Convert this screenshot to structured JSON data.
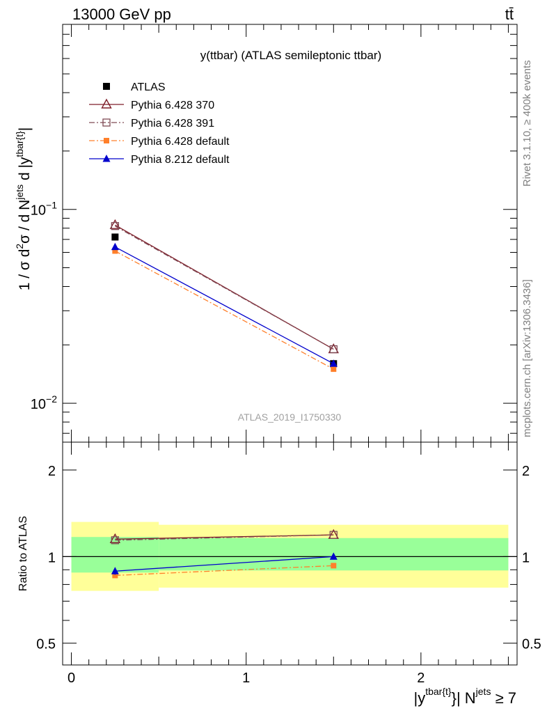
{
  "header": {
    "energy": "13000 GeV pp",
    "process": "tt̄"
  },
  "side": {
    "rivet": "Rivet 3.1.10, ≥ 400k events",
    "mcplots": "mcplots.cern.ch [arXiv:1306.3436]"
  },
  "watermark": "ATLAS_2019_I1750330",
  "colors": {
    "atlas": "#000000",
    "p370": "#7f1f2a",
    "p391": "#7f4a55",
    "p6def": "#ff7f2a",
    "p8def": "#0000cc",
    "band_outer": "#ffff99",
    "band_inner": "#99ff99"
  },
  "chart_data": [
    {
      "type": "line",
      "panel": "main",
      "title": "y(ttbar) (ATLAS semileptonic ttbar)",
      "ylabel_parts": [
        "1 / σ d",
        "2",
        "σ / d N",
        "jets",
        " d |y",
        "tbar{t}",
        "|"
      ],
      "yscale": "log",
      "ylim": [
        0.0063,
        0.9
      ],
      "xlim": [
        -0.05,
        2.55
      ],
      "ytick_labels": [
        {
          "value": 0.1,
          "base": "10",
          "exp": "−1"
        },
        {
          "value": 0.01,
          "base": "10",
          "exp": "−2"
        }
      ],
      "x": [
        0.25,
        1.5
      ],
      "series": [
        {
          "name": "ATLAS",
          "values": [
            0.072,
            0.016
          ],
          "marker": "square",
          "line": "none",
          "color_key": "atlas"
        },
        {
          "name": "Pythia 6.428 370",
          "values": [
            0.083,
            0.019
          ],
          "marker": "triangle-open",
          "line": "solid",
          "color_key": "p370"
        },
        {
          "name": "Pythia 6.428 391",
          "values": [
            0.082,
            0.019
          ],
          "marker": "square-open",
          "line": "dashdot",
          "color_key": "p391"
        },
        {
          "name": "Pythia 6.428 default",
          "values": [
            0.061,
            0.015
          ],
          "marker": "square-small",
          "line": "dashdot",
          "color_key": "p6def"
        },
        {
          "name": "Pythia 8.212 default",
          "values": [
            0.064,
            0.016
          ],
          "marker": "triangle",
          "line": "solid",
          "color_key": "p8def"
        }
      ]
    },
    {
      "type": "line",
      "panel": "ratio",
      "ylabel": "Ratio to ATLAS",
      "yscale": "log",
      "ylim": [
        0.42,
        2.5
      ],
      "xlim": [
        -0.05,
        2.55
      ],
      "ytick_labels": [
        {
          "value": 0.5,
          "label": "0.5"
        },
        {
          "value": 1,
          "label": "1"
        },
        {
          "value": 2,
          "label": "2"
        }
      ],
      "xtick_labels": [
        {
          "value": 0,
          "label": "0"
        },
        {
          "value": 1,
          "label": "1"
        },
        {
          "value": 2,
          "label": "2"
        }
      ],
      "xlabel_parts": [
        "|y",
        "tbar{t}",
        "}| N",
        "jets",
        " ≥ 7"
      ],
      "bands": [
        {
          "x0": 0.0,
          "x1": 0.5,
          "outer": [
            0.76,
            1.32
          ],
          "inner": [
            0.88,
            1.17
          ]
        },
        {
          "x0": 0.5,
          "x1": 2.5,
          "outer": [
            0.78,
            1.29
          ],
          "inner": [
            0.895,
            1.16
          ]
        }
      ],
      "x": [
        0.25,
        1.5
      ],
      "series": [
        {
          "name": "Pythia 6.428 370",
          "values": [
            1.15,
            1.19
          ],
          "marker": "triangle-open",
          "line": "solid",
          "color_key": "p370"
        },
        {
          "name": "Pythia 6.428 391",
          "values": [
            1.14,
            1.19
          ],
          "marker": "square-open",
          "line": "dashdot",
          "color_key": "p391"
        },
        {
          "name": "Pythia 6.428 default",
          "values": [
            0.86,
            0.93
          ],
          "marker": "square-small",
          "line": "dashdot",
          "color_key": "p6def"
        },
        {
          "name": "Pythia 8.212 default",
          "values": [
            0.89,
            1.0
          ],
          "marker": "triangle",
          "line": "solid",
          "color_key": "p8def",
          "errors": [
            0.025,
            0.02
          ]
        }
      ]
    }
  ]
}
